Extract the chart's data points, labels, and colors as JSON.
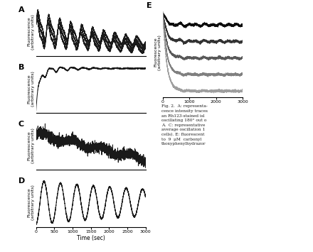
{
  "time_max": 3000,
  "xlim": [
    0,
    3000
  ],
  "xticks_D": [
    0,
    500,
    1000,
    1500,
    2000,
    2500,
    3000
  ],
  "xticks_E": [
    0,
    1000,
    2000,
    3000
  ],
  "xlabel": "Time (sec)",
  "ylabel": "Fluorescence\n(arbitrary units)",
  "background_color": "#ffffff",
  "line_color": "#1a1a1a",
  "caption": "Fig. 2.  A: representa-\ncence intensity traces\nan Rh123-stained isl\noscillating 180° out o\nA.  C: representative\naverage oscillation 1\ncells). E: fluorescent\nto  9  μM  carbonyl\nthoxyphenylhydrazor"
}
